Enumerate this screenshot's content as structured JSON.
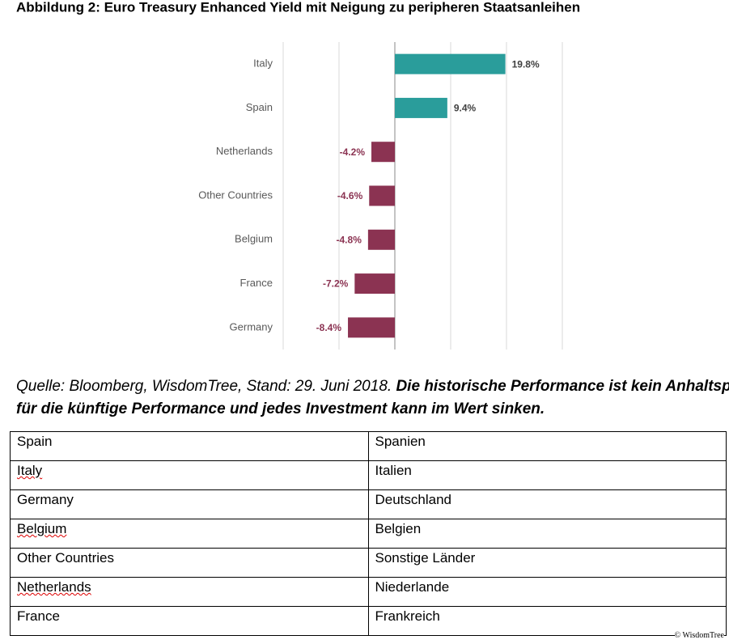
{
  "chart_data": {
    "type": "barh",
    "title": "Abbildung 2: Euro Treasury Enhanced Yield mit Neigung zu peripheren Staatsanleihen",
    "categories": [
      "Italy",
      "Spain",
      "Netherlands",
      "Other Countries",
      "Belgium",
      "France",
      "Germany"
    ],
    "values": [
      19.8,
      9.4,
      -4.2,
      -4.6,
      -4.8,
      -7.2,
      -8.4
    ],
    "value_labels": [
      "19.8%",
      "9.4%",
      "-4.2%",
      "-4.6%",
      "-4.8%",
      "-7.2%",
      "-8.4%"
    ],
    "colors": [
      "#2a9d9b",
      "#2a9d9b",
      "#8b3352",
      "#8b3352",
      "#8b3352",
      "#8b3352",
      "#8b3352"
    ],
    "xlim": [
      -20,
      30
    ],
    "xticks": [
      -20,
      -10,
      0,
      10,
      20,
      30
    ],
    "grid": true
  },
  "caption": {
    "source": "Quelle: Bloomberg, WisdomTree, Stand: 29. Juni 2018.",
    "disclaimer": [
      "Die historische Performance ist kein Anhaltspunk",
      "für die künftige Performance und jedes Investment kann im Wert sinken."
    ]
  },
  "table": {
    "rows": [
      [
        "Spain",
        "Spanien"
      ],
      [
        "Italy",
        "Italien"
      ],
      [
        "Germany",
        "Deutschland"
      ],
      [
        "Belgium",
        "Belgien"
      ],
      [
        "Other Countries",
        "Sonstige Länder"
      ],
      [
        "Netherlands",
        "Niederlande"
      ],
      [
        "France",
        "Frankreich"
      ]
    ]
  },
  "copyright": "© WisdomTree"
}
